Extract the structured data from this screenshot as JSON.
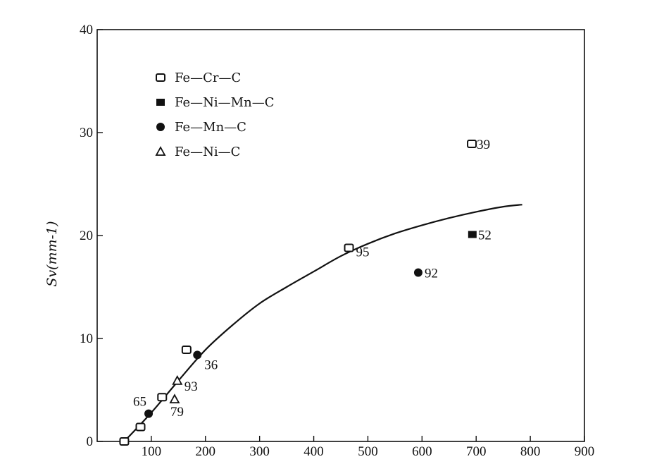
{
  "chart_data": {
    "type": "scatter",
    "title": "",
    "xlabel": "",
    "ylabel": "Sv(mm-1)",
    "xlim": [
      0,
      900
    ],
    "ylim": [
      0,
      40
    ],
    "x_ticks": [
      100,
      200,
      300,
      400,
      500,
      600,
      700,
      800,
      900
    ],
    "y_ticks": [
      0,
      10,
      20,
      30,
      40
    ],
    "grid": false,
    "legend_position": "top-left",
    "series": [
      {
        "name": "Fe—Cr—C",
        "marker": "open-square",
        "points": [
          {
            "x": 50,
            "y": 0
          },
          {
            "x": 80,
            "y": 1.4
          },
          {
            "x": 120,
            "y": 4.3
          },
          {
            "x": 165,
            "y": 8.9
          },
          {
            "x": 465,
            "y": 18.8,
            "label": "95"
          },
          {
            "x": 692,
            "y": 28.9,
            "label": "39"
          }
        ]
      },
      {
        "name": "Fe—Ni—Mn—C",
        "marker": "filled-square",
        "points": [
          {
            "x": 693,
            "y": 20.1,
            "label": "52"
          }
        ]
      },
      {
        "name": "Fe—Mn—C",
        "marker": "filled-circle",
        "points": [
          {
            "x": 95,
            "y": 2.7,
            "label": "65"
          },
          {
            "x": 185,
            "y": 8.4,
            "label": "36"
          },
          {
            "x": 593,
            "y": 16.4,
            "label": "92"
          }
        ]
      },
      {
        "name": "Fe—Ni—C",
        "marker": "open-triangle",
        "points": [
          {
            "x": 143,
            "y": 4.1,
            "label": "79"
          },
          {
            "x": 148,
            "y": 5.9,
            "label": "93"
          }
        ]
      }
    ],
    "curve": {
      "points": [
        {
          "x": 50,
          "y": 0
        },
        {
          "x": 100,
          "y": 2.8
        },
        {
          "x": 150,
          "y": 5.9
        },
        {
          "x": 200,
          "y": 8.9
        },
        {
          "x": 250,
          "y": 11.3
        },
        {
          "x": 300,
          "y": 13.4
        },
        {
          "x": 350,
          "y": 15.0
        },
        {
          "x": 400,
          "y": 16.5
        },
        {
          "x": 450,
          "y": 18.0
        },
        {
          "x": 500,
          "y": 19.2
        },
        {
          "x": 550,
          "y": 20.2
        },
        {
          "x": 600,
          "y": 21.0
        },
        {
          "x": 650,
          "y": 21.7
        },
        {
          "x": 700,
          "y": 22.3
        },
        {
          "x": 750,
          "y": 22.8
        },
        {
          "x": 785,
          "y": 23.0
        }
      ]
    }
  }
}
